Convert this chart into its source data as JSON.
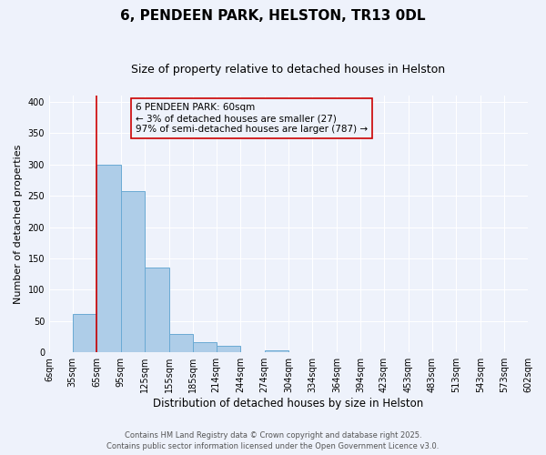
{
  "title": "6, PENDEEN PARK, HELSTON, TR13 0DL",
  "subtitle": "Size of property relative to detached houses in Helston",
  "xlabel": "Distribution of detached houses by size in Helston",
  "ylabel": "Number of detached properties",
  "bar_values": [
    0,
    62,
    300,
    258,
    135,
    30,
    17,
    11,
    0,
    3,
    0,
    0,
    0,
    1,
    0,
    0,
    0,
    0,
    0,
    0
  ],
  "bin_edges": [
    6,
    35,
    65,
    95,
    125,
    155,
    185,
    214,
    244,
    274,
    304,
    334,
    364,
    394,
    423,
    453,
    483,
    513,
    543,
    573,
    602
  ],
  "tick_labels": [
    "6sqm",
    "35sqm",
    "65sqm",
    "95sqm",
    "125sqm",
    "155sqm",
    "185sqm",
    "214sqm",
    "244sqm",
    "274sqm",
    "304sqm",
    "334sqm",
    "364sqm",
    "394sqm",
    "423sqm",
    "453sqm",
    "483sqm",
    "513sqm",
    "543sqm",
    "573sqm",
    "602sqm"
  ],
  "bar_color": "#aecde8",
  "bar_edge_color": "#6aaad4",
  "vline_x": 65,
  "vline_color": "#cc0000",
  "annotation_text": "6 PENDEEN PARK: 60sqm\n← 3% of detached houses are smaller (27)\n97% of semi-detached houses are larger (787) →",
  "annotation_box_color": "#cc0000",
  "ylim": [
    0,
    410
  ],
  "yticks": [
    0,
    50,
    100,
    150,
    200,
    250,
    300,
    350,
    400
  ],
  "background_color": "#eef2fb",
  "grid_color": "#ffffff",
  "footer_line1": "Contains HM Land Registry data © Crown copyright and database right 2025.",
  "footer_line2": "Contains public sector information licensed under the Open Government Licence v3.0.",
  "title_fontsize": 11,
  "subtitle_fontsize": 9,
  "xlabel_fontsize": 8.5,
  "ylabel_fontsize": 8,
  "tick_fontsize": 7,
  "annotation_fontsize": 7.5,
  "footer_fontsize": 6
}
